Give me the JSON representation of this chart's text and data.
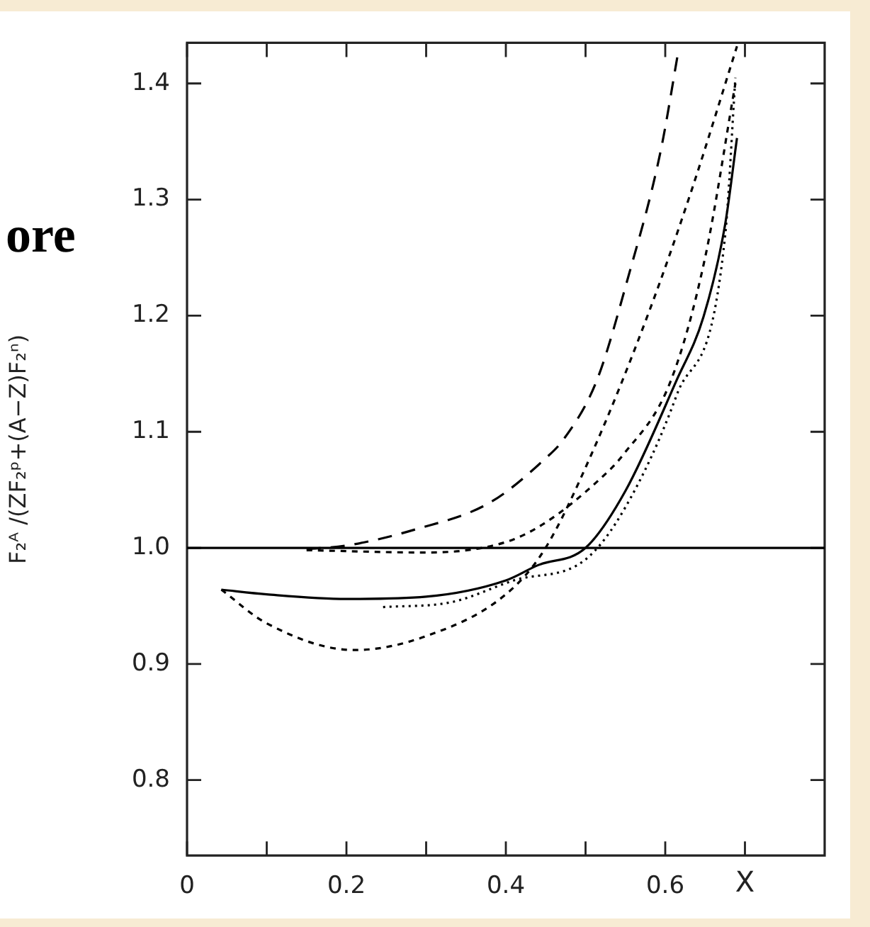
{
  "chart_data": {
    "type": "line",
    "ylabel": "F₂ᴬ /(ZF₂ᵖ+(A−Z)F₂ⁿ)",
    "xlabel": "X",
    "annotations": [
      "ore"
    ],
    "xlim": [
      0,
      0.8
    ],
    "ylim": [
      0.735,
      1.435
    ],
    "xticks": [
      {
        "value": 0,
        "label": "0"
      },
      {
        "value": 0.1,
        "label": null
      },
      {
        "value": 0.2,
        "label": "0.2"
      },
      {
        "value": 0.3,
        "label": null
      },
      {
        "value": 0.4,
        "label": "0.4"
      },
      {
        "value": 0.5,
        "label": null
      },
      {
        "value": 0.6,
        "label": "0.6"
      },
      {
        "value": 0.7,
        "label": null
      }
    ],
    "yticks": [
      {
        "value": 0.8,
        "label": "0.8"
      },
      {
        "value": 0.9,
        "label": "0.9"
      },
      {
        "value": 1.0,
        "label": "1.0"
      },
      {
        "value": 1.1,
        "label": "1.1"
      },
      {
        "value": 1.2,
        "label": "1.2"
      },
      {
        "value": 1.3,
        "label": "1.3"
      },
      {
        "value": 1.4,
        "label": "1.4"
      }
    ],
    "ref_lines": [
      {
        "axis": "y",
        "value": 1.0,
        "color": "#000000"
      }
    ],
    "grid": false,
    "legend": false,
    "marker": "none",
    "series": [
      {
        "color": "#000000",
        "line_style": "solid",
        "x": [
          0.043,
          0.1,
          0.2,
          0.3,
          0.4,
          0.44,
          0.5,
          0.55,
          0.614,
          0.648,
          0.675,
          0.69
        ],
        "values": [
          0.964,
          0.96,
          0.956,
          0.958,
          0.972,
          0.985,
          1.0,
          1.049,
          1.144,
          1.199,
          1.278,
          1.353
        ]
      },
      {
        "color": "#000000",
        "line_style": "dashed",
        "x": [
          0.043,
          0.1,
          0.21,
          0.3,
          0.4,
          0.448,
          0.507,
          0.58,
          0.634,
          0.69
        ],
        "values": [
          0.964,
          0.935,
          0.912,
          0.924,
          0.96,
          0.998,
          1.08,
          1.204,
          1.31,
          1.432
        ]
      },
      {
        "color": "#000000",
        "line_style": "dashed",
        "x": [
          0.15,
          0.2,
          0.287,
          0.38,
          0.448,
          0.473,
          0.514,
          0.553,
          0.594,
          0.617
        ],
        "values": [
          0.999,
          1.002,
          1.016,
          1.039,
          1.076,
          1.094,
          1.144,
          1.232,
          1.341,
          1.43
        ]
      },
      {
        "color": "#000000",
        "line_style": "dashed",
        "x": [
          0.15,
          0.3,
          0.4,
          0.448,
          0.516,
          0.547,
          0.607,
          0.65,
          0.688
        ],
        "values": [
          0.998,
          0.996,
          1.005,
          1.021,
          1.058,
          1.08,
          1.144,
          1.25,
          1.4
        ]
      },
      {
        "color": "#000000",
        "line_style": "dotted",
        "x": [
          0.246,
          0.33,
          0.41,
          0.5,
          0.55,
          0.614,
          0.675,
          0.688
        ],
        "values": [
          0.949,
          0.953,
          0.972,
          0.99,
          1.035,
          1.131,
          1.268,
          1.405
        ]
      }
    ]
  }
}
